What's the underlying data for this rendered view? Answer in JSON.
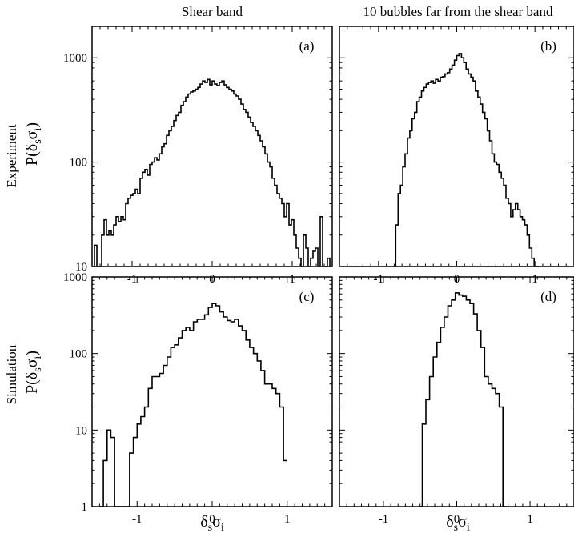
{
  "figure": {
    "column_titles": [
      "Shear band",
      "10 bubbles far from the shear band"
    ],
    "row_labels": [
      "Experiment",
      "Simulation"
    ],
    "ylabel_main": "P(δ",
    "ylabel_sub1": "s",
    "ylabel_mid": "σ",
    "ylabel_sub2": "i",
    "ylabel_close": ")",
    "xlabel_main": "δ",
    "xlabel_sub1": "s",
    "xlabel_mid": "σ",
    "xlabel_sub2": "i"
  },
  "chart_data": [
    {
      "type": "line",
      "panel_label": "(a)",
      "row": 0,
      "col": 0,
      "xlim": [
        -1.5,
        1.5
      ],
      "ylim": [
        10,
        2000
      ],
      "yscale": "log",
      "xticks": [
        -1,
        0,
        1
      ],
      "xtick_labels": [
        "-1",
        "0",
        "1"
      ],
      "yticks": [
        10,
        100,
        1000
      ],
      "ytick_labels": [
        "10",
        "100",
        "1000"
      ],
      "series": [
        {
          "x": [
            -1.5,
            -1.47,
            -1.44,
            -1.41,
            -1.38,
            -1.35,
            -1.32,
            -1.29,
            -1.26,
            -1.23,
            -1.2,
            -1.17,
            -1.14,
            -1.11,
            -1.08,
            -1.05,
            -1.02,
            -0.99,
            -0.96,
            -0.93,
            -0.9,
            -0.87,
            -0.84,
            -0.81,
            -0.78,
            -0.75,
            -0.72,
            -0.69,
            -0.66,
            -0.63,
            -0.6,
            -0.57,
            -0.54,
            -0.51,
            -0.48,
            -0.45,
            -0.42,
            -0.39,
            -0.36,
            -0.33,
            -0.3,
            -0.27,
            -0.24,
            -0.21,
            -0.18,
            -0.15,
            -0.12,
            -0.09,
            -0.06,
            -0.03,
            0,
            0.03,
            0.06,
            0.09,
            0.12,
            0.15,
            0.18,
            0.21,
            0.24,
            0.27,
            0.3,
            0.33,
            0.36,
            0.39,
            0.42,
            0.45,
            0.48,
            0.51,
            0.54,
            0.57,
            0.6,
            0.63,
            0.66,
            0.69,
            0.72,
            0.75,
            0.78,
            0.81,
            0.84,
            0.87,
            0.9,
            0.93,
            0.96,
            0.99,
            1.02,
            1.05,
            1.08,
            1.11,
            1.14,
            1.17,
            1.2,
            1.23,
            1.26,
            1.29,
            1.32,
            1.35,
            1.38,
            1.41,
            1.44,
            1.47
          ],
          "y": [
            10,
            16,
            10,
            10,
            20,
            28,
            20,
            22,
            20,
            25,
            30,
            27,
            30,
            28,
            40,
            45,
            48,
            50,
            55,
            50,
            70,
            80,
            85,
            75,
            95,
            100,
            110,
            105,
            120,
            140,
            150,
            180,
            200,
            220,
            250,
            280,
            300,
            350,
            380,
            420,
            450,
            470,
            480,
            500,
            520,
            560,
            600,
            580,
            620,
            550,
            600,
            560,
            540,
            580,
            600,
            550,
            520,
            500,
            480,
            450,
            430,
            400,
            360,
            320,
            300,
            270,
            240,
            220,
            200,
            180,
            160,
            140,
            120,
            100,
            90,
            70,
            60,
            50,
            45,
            40,
            30,
            40,
            25,
            28,
            20,
            15,
            12,
            10,
            20,
            15,
            10,
            12,
            14,
            15,
            10,
            30,
            10,
            10,
            12,
            10
          ],
          "color": "#000000"
        }
      ]
    },
    {
      "type": "line",
      "panel_label": "(b)",
      "row": 0,
      "col": 1,
      "xlim": [
        -1.5,
        1.5
      ],
      "ylim": [
        10,
        2000
      ],
      "yscale": "log",
      "xticks": [
        -1,
        0,
        1
      ],
      "xtick_labels": [
        "-1",
        "0",
        "1"
      ],
      "yticks": [
        10,
        100,
        1000
      ],
      "ytick_labels": [
        "",
        "",
        ""
      ],
      "series": [
        {
          "x": [
            -0.81,
            -0.78,
            -0.75,
            -0.72,
            -0.69,
            -0.66,
            -0.63,
            -0.6,
            -0.57,
            -0.54,
            -0.51,
            -0.48,
            -0.45,
            -0.42,
            -0.39,
            -0.36,
            -0.33,
            -0.3,
            -0.27,
            -0.24,
            -0.21,
            -0.18,
            -0.15,
            -0.12,
            -0.09,
            -0.06,
            -0.03,
            0,
            0.03,
            0.06,
            0.09,
            0.12,
            0.15,
            0.18,
            0.21,
            0.24,
            0.27,
            0.3,
            0.33,
            0.36,
            0.39,
            0.42,
            0.45,
            0.48,
            0.51,
            0.54,
            0.57,
            0.6,
            0.63,
            0.66,
            0.69,
            0.72,
            0.75,
            0.78,
            0.81,
            0.84,
            0.87,
            0.9,
            0.93,
            0.96,
            0.99,
            1.02
          ],
          "y": [
            10,
            25,
            50,
            60,
            90,
            120,
            170,
            200,
            260,
            300,
            380,
            420,
            480,
            520,
            560,
            580,
            600,
            570,
            620,
            600,
            650,
            660,
            700,
            720,
            780,
            850,
            950,
            1050,
            1100,
            1000,
            900,
            780,
            700,
            650,
            600,
            480,
            420,
            360,
            300,
            260,
            200,
            160,
            120,
            100,
            95,
            80,
            70,
            60,
            45,
            40,
            30,
            35,
            40,
            35,
            30,
            28,
            25,
            20,
            15,
            12,
            10,
            10
          ],
          "color": "#000000"
        }
      ]
    },
    {
      "type": "line",
      "panel_label": "(c)",
      "row": 1,
      "col": 0,
      "xlim": [
        -1.6,
        1.6
      ],
      "ylim": [
        1,
        1000
      ],
      "yscale": "log",
      "xticks": [
        -1,
        0,
        1
      ],
      "xtick_labels": [
        "-1",
        "0",
        "1"
      ],
      "yticks": [
        1,
        10,
        100,
        1000
      ],
      "ytick_labels": [
        "1",
        "10",
        "100",
        "1000"
      ],
      "series": [
        {
          "x": [
            -1.5,
            -1.45,
            -1.4,
            -1.35,
            -1.3,
            -1.25,
            -1.2,
            -1.15,
            -1.1,
            -1.05,
            -1,
            -0.95,
            -0.9,
            -0.85,
            -0.8,
            -0.75,
            -0.7,
            -0.65,
            -0.6,
            -0.55,
            -0.5,
            -0.45,
            -0.4,
            -0.35,
            -0.3,
            -0.25,
            -0.2,
            -0.15,
            -0.1,
            -0.05,
            0,
            0.05,
            0.1,
            0.15,
            0.2,
            0.25,
            0.3,
            0.35,
            0.4,
            0.45,
            0.5,
            0.55,
            0.6,
            0.65,
            0.7,
            0.75,
            0.8,
            0.85,
            0.9,
            0.95
          ],
          "y": [
            1,
            4,
            10,
            8,
            1,
            1,
            1,
            1,
            5,
            8,
            12,
            15,
            20,
            35,
            50,
            50,
            55,
            70,
            90,
            120,
            130,
            160,
            200,
            220,
            200,
            260,
            280,
            280,
            320,
            400,
            450,
            420,
            350,
            300,
            270,
            260,
            280,
            230,
            200,
            150,
            120,
            100,
            80,
            60,
            40,
            40,
            35,
            30,
            20,
            4
          ],
          "color": "#000000"
        }
      ]
    },
    {
      "type": "line",
      "panel_label": "(d)",
      "row": 1,
      "col": 1,
      "xlim": [
        -1.6,
        1.6
      ],
      "ylim": [
        1,
        1000
      ],
      "yscale": "log",
      "xticks": [
        -1,
        0,
        1
      ],
      "xtick_labels": [
        "-1",
        "0",
        "1"
      ],
      "yticks": [
        1,
        10,
        100,
        1000
      ],
      "ytick_labels": [
        "",
        "",
        "",
        ""
      ],
      "series": [
        {
          "x": [
            -0.52,
            -0.47,
            -0.42,
            -0.37,
            -0.32,
            -0.27,
            -0.22,
            -0.17,
            -0.12,
            -0.07,
            -0.02,
            0.03,
            0.08,
            0.13,
            0.18,
            0.23,
            0.28,
            0.33,
            0.38,
            0.43,
            0.48,
            0.53,
            0.58,
            0.63
          ],
          "y": [
            1,
            12,
            25,
            50,
            90,
            140,
            220,
            300,
            420,
            500,
            620,
            580,
            560,
            500,
            450,
            330,
            200,
            120,
            50,
            40,
            35,
            30,
            20,
            1
          ],
          "color": "#000000"
        }
      ]
    }
  ]
}
